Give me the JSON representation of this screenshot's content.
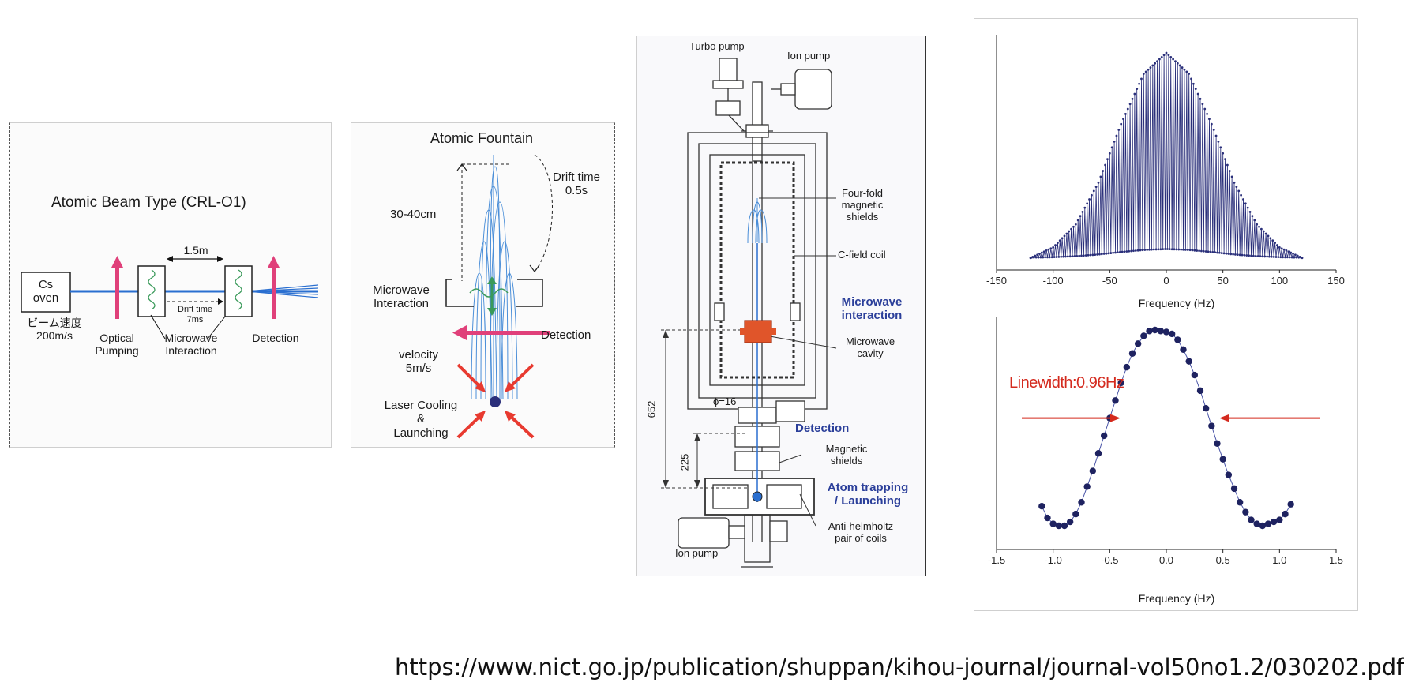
{
  "panel_beam": {
    "title": "Atomic Beam Type (CRL-O1)",
    "oven_label": "Cs\noven",
    "speed_label": "ビーム速度\n200m/s",
    "distance_label": "1.5m",
    "drift_label": "Drift time\n7ms",
    "optical_pumping": "Optical\nPumping",
    "microwave": "Microwave\nInteraction",
    "detection": "Detection",
    "beam_color": "#2a6fd0",
    "laser_color": "#e0407a"
  },
  "panel_fountain": {
    "title": "Atomic Fountain",
    "height_label": "30-40cm",
    "drift_label": "Drift time\n0.5s",
    "microwave": "Microwave\nInteraction",
    "detection": "Detection",
    "velocity": "velocity\n5m/s",
    "cooling": "Laser Cooling\n&\nLaunching"
  },
  "panel_apparatus": {
    "turbo_pump": "Turbo pump",
    "ion_pump_top": "Ion pump",
    "shields": "Four-fold\nmagnetic\nshields",
    "cfield": "C-field coil",
    "microwave_interaction": "Microwave\ninteraction",
    "cavity": "Microwave\ncavity",
    "phi": "ϕ=16",
    "detection": "Detection",
    "mag_shields": "Magnetic\nshields",
    "trapping": "Atom trapping\n/ Launching",
    "coils": "Anti-helmholtz\npair of coils",
    "ion_pump_bottom": "Ion pump",
    "dim_652": "652",
    "dim_225": "225",
    "accent_color": "#2b3f9a"
  },
  "chart_data": [
    {
      "type": "line",
      "xlabel": "Frequency (Hz)",
      "ylabel": "",
      "xlim": [
        -150,
        150
      ],
      "xticks": [
        "-150",
        "-100",
        "-50",
        "0",
        "50",
        "100",
        "150"
      ],
      "description_free": true,
      "envelope_x": [
        -120,
        -100,
        -80,
        -60,
        -40,
        -20,
        0,
        20,
        40,
        60,
        80,
        100,
        120
      ],
      "envelope_y": [
        0.02,
        0.07,
        0.18,
        0.38,
        0.66,
        0.9,
        1.0,
        0.9,
        0.66,
        0.38,
        0.18,
        0.07,
        0.02
      ],
      "fringe_period_hz": 2.0,
      "color": "#2a2f7a"
    },
    {
      "type": "line",
      "xlabel": "Frequency (Hz)",
      "ylabel": "",
      "xlim": [
        -1.5,
        1.5
      ],
      "xticks": [
        "-1.5",
        "-1.0",
        "-0.5",
        "0.0",
        "0.5",
        "1.0",
        "1.5"
      ],
      "annotation": "Linewidth:0.96Hz",
      "x": [
        -1.1,
        -1.05,
        -1.0,
        -0.95,
        -0.9,
        -0.85,
        -0.8,
        -0.75,
        -0.7,
        -0.65,
        -0.6,
        -0.55,
        -0.5,
        -0.45,
        -0.4,
        -0.35,
        -0.3,
        -0.25,
        -0.2,
        -0.15,
        -0.1,
        -0.05,
        0.0,
        0.05,
        0.1,
        0.15,
        0.2,
        0.25,
        0.3,
        0.35,
        0.4,
        0.45,
        0.5,
        0.55,
        0.6,
        0.65,
        0.7,
        0.75,
        0.8,
        0.85,
        0.9,
        0.95,
        1.0,
        1.05,
        1.1
      ],
      "y": [
        0.1,
        0.04,
        0.01,
        0.0,
        0.0,
        0.02,
        0.06,
        0.12,
        0.2,
        0.28,
        0.37,
        0.46,
        0.55,
        0.64,
        0.73,
        0.81,
        0.88,
        0.93,
        0.97,
        0.995,
        1.0,
        0.995,
        0.99,
        0.98,
        0.95,
        0.9,
        0.84,
        0.77,
        0.69,
        0.6,
        0.51,
        0.42,
        0.34,
        0.26,
        0.19,
        0.12,
        0.07,
        0.03,
        0.01,
        0.0,
        0.01,
        0.02,
        0.03,
        0.06,
        0.11
      ],
      "annotation_color": "#d42a1e",
      "color": "#1e2260"
    }
  ],
  "footer": {
    "url": "https://www.nict.go.jp/publication/shuppan/kihou-journal/journal-vol50no1.2/030202.pdf"
  }
}
